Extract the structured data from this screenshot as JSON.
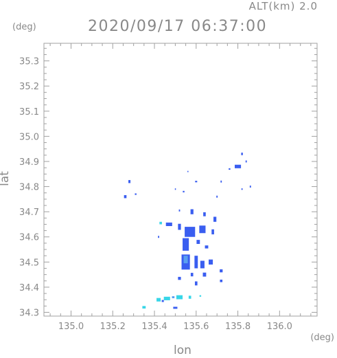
{
  "header": {
    "alt_label": "ALT(km)  2.0",
    "title": "2020/09/17 06:37:00"
  },
  "chart_data": {
    "type": "heatmap",
    "title": "2020/09/17 06:37:00",
    "xlabel": "lon",
    "ylabel": "lat",
    "x_unit": "(deg)",
    "y_unit": "(deg)",
    "xlim": [
      134.87,
      136.18
    ],
    "ylim": [
      34.285,
      35.37
    ],
    "x_ticks": [
      135.0,
      135.2,
      135.4,
      135.6,
      135.8,
      136.0
    ],
    "y_ticks": [
      34.3,
      34.4,
      34.5,
      34.6,
      34.7,
      34.8,
      34.9,
      35.0,
      35.1,
      35.2,
      35.3
    ],
    "grid": false,
    "colors": {
      "blue": "#3a5ef0",
      "cyan": "#38d6e8",
      "light_blue": "#5aa0f0",
      "axis": "#a0a0a0"
    },
    "cells": [
      {
        "lon": 135.28,
        "lat": 34.82,
        "w": 0.01,
        "h": 0.012,
        "c": "blue"
      },
      {
        "lon": 135.26,
        "lat": 34.76,
        "w": 0.012,
        "h": 0.012,
        "c": "blue"
      },
      {
        "lon": 135.31,
        "lat": 34.77,
        "w": 0.008,
        "h": 0.006,
        "c": "blue"
      },
      {
        "lon": 135.56,
        "lat": 34.86,
        "w": 0.004,
        "h": 0.005,
        "c": "blue"
      },
      {
        "lon": 135.8,
        "lat": 34.88,
        "w": 0.03,
        "h": 0.014,
        "c": "blue"
      },
      {
        "lon": 135.82,
        "lat": 34.93,
        "w": 0.008,
        "h": 0.01,
        "c": "blue"
      },
      {
        "lon": 135.84,
        "lat": 34.9,
        "w": 0.006,
        "h": 0.008,
        "c": "blue"
      },
      {
        "lon": 135.76,
        "lat": 34.87,
        "w": 0.008,
        "h": 0.006,
        "c": "blue"
      },
      {
        "lon": 135.86,
        "lat": 34.8,
        "w": 0.006,
        "h": 0.008,
        "c": "blue"
      },
      {
        "lon": 135.72,
        "lat": 34.82,
        "w": 0.006,
        "h": 0.008,
        "c": "blue"
      },
      {
        "lon": 135.7,
        "lat": 34.76,
        "w": 0.006,
        "h": 0.008,
        "c": "blue"
      },
      {
        "lon": 135.6,
        "lat": 34.82,
        "w": 0.01,
        "h": 0.006,
        "c": "blue"
      },
      {
        "lon": 135.5,
        "lat": 34.79,
        "w": 0.004,
        "h": 0.006,
        "c": "blue"
      },
      {
        "lon": 135.54,
        "lat": 34.78,
        "w": 0.008,
        "h": 0.006,
        "c": "blue"
      },
      {
        "lon": 135.82,
        "lat": 34.79,
        "w": 0.006,
        "h": 0.006,
        "c": "blue"
      },
      {
        "lon": 135.52,
        "lat": 34.705,
        "w": 0.006,
        "h": 0.008,
        "c": "blue"
      },
      {
        "lon": 135.58,
        "lat": 34.7,
        "w": 0.014,
        "h": 0.02,
        "c": "blue"
      },
      {
        "lon": 135.64,
        "lat": 34.69,
        "w": 0.012,
        "h": 0.016,
        "c": "blue"
      },
      {
        "lon": 135.69,
        "lat": 34.67,
        "w": 0.014,
        "h": 0.02,
        "c": "blue"
      },
      {
        "lon": 135.47,
        "lat": 34.65,
        "w": 0.03,
        "h": 0.014,
        "c": "blue"
      },
      {
        "lon": 135.52,
        "lat": 34.64,
        "w": 0.014,
        "h": 0.024,
        "c": "blue"
      },
      {
        "lon": 135.43,
        "lat": 34.655,
        "w": 0.012,
        "h": 0.01,
        "c": "cyan"
      },
      {
        "lon": 135.57,
        "lat": 34.62,
        "w": 0.05,
        "h": 0.04,
        "c": "blue"
      },
      {
        "lon": 135.63,
        "lat": 34.63,
        "w": 0.03,
        "h": 0.03,
        "c": "blue"
      },
      {
        "lon": 135.68,
        "lat": 34.62,
        "w": 0.012,
        "h": 0.02,
        "c": "blue"
      },
      {
        "lon": 135.61,
        "lat": 34.58,
        "w": 0.016,
        "h": 0.016,
        "c": "blue"
      },
      {
        "lon": 135.55,
        "lat": 34.57,
        "w": 0.03,
        "h": 0.05,
        "c": "blue"
      },
      {
        "lon": 135.65,
        "lat": 34.56,
        "w": 0.016,
        "h": 0.012,
        "c": "blue"
      },
      {
        "lon": 135.42,
        "lat": 34.6,
        "w": 0.006,
        "h": 0.008,
        "c": "blue"
      },
      {
        "lon": 135.55,
        "lat": 34.5,
        "w": 0.04,
        "h": 0.06,
        "c": "blue"
      },
      {
        "lon": 135.55,
        "lat": 34.51,
        "w": 0.02,
        "h": 0.03,
        "c": "light_blue"
      },
      {
        "lon": 135.6,
        "lat": 34.5,
        "w": 0.016,
        "h": 0.05,
        "c": "blue"
      },
      {
        "lon": 135.63,
        "lat": 34.49,
        "w": 0.02,
        "h": 0.03,
        "c": "blue"
      },
      {
        "lon": 135.67,
        "lat": 34.5,
        "w": 0.02,
        "h": 0.02,
        "c": "blue"
      },
      {
        "lon": 135.72,
        "lat": 34.465,
        "w": 0.014,
        "h": 0.012,
        "c": "blue"
      },
      {
        "lon": 135.58,
        "lat": 34.45,
        "w": 0.012,
        "h": 0.014,
        "c": "blue"
      },
      {
        "lon": 135.64,
        "lat": 34.45,
        "w": 0.016,
        "h": 0.016,
        "c": "blue"
      },
      {
        "lon": 135.52,
        "lat": 34.435,
        "w": 0.014,
        "h": 0.012,
        "c": "blue"
      },
      {
        "lon": 135.6,
        "lat": 34.415,
        "w": 0.012,
        "h": 0.016,
        "c": "blue"
      },
      {
        "lon": 135.72,
        "lat": 34.425,
        "w": 0.012,
        "h": 0.01,
        "c": "blue"
      },
      {
        "lon": 135.46,
        "lat": 34.355,
        "w": 0.03,
        "h": 0.014,
        "c": "cyan"
      },
      {
        "lon": 135.52,
        "lat": 34.36,
        "w": 0.03,
        "h": 0.016,
        "c": "cyan"
      },
      {
        "lon": 135.42,
        "lat": 34.35,
        "w": 0.02,
        "h": 0.014,
        "c": "cyan"
      },
      {
        "lon": 135.57,
        "lat": 34.36,
        "w": 0.012,
        "h": 0.012,
        "c": "cyan"
      },
      {
        "lon": 135.44,
        "lat": 34.345,
        "w": 0.01,
        "h": 0.008,
        "c": "blue"
      },
      {
        "lon": 135.49,
        "lat": 34.36,
        "w": 0.012,
        "h": 0.008,
        "c": "light_blue"
      },
      {
        "lon": 135.35,
        "lat": 34.32,
        "w": 0.016,
        "h": 0.01,
        "c": "cyan"
      },
      {
        "lon": 135.5,
        "lat": 34.318,
        "w": 0.02,
        "h": 0.008,
        "c": "blue"
      },
      {
        "lon": 135.62,
        "lat": 34.365,
        "w": 0.008,
        "h": 0.006,
        "c": "cyan"
      }
    ]
  }
}
